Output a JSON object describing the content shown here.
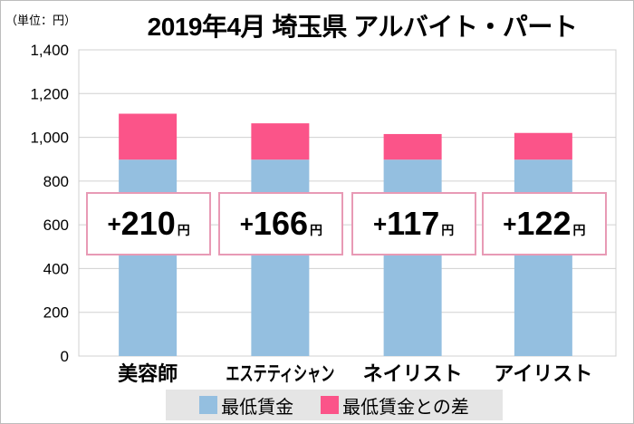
{
  "chart_data": {
    "type": "bar",
    "stacked": true,
    "title": "2019年4月 埼玉県 アルバイト・パート",
    "unit_label": "（単位：円）",
    "categories": [
      "美容師",
      "エステティシャン",
      "ネイリスト",
      "アイリスト"
    ],
    "series": [
      {
        "name": "最低賃金",
        "values": [
          898,
          898,
          898,
          898
        ],
        "color": "#94bfe0"
      },
      {
        "name": "最低賃金との差",
        "values": [
          210,
          166,
          117,
          122
        ],
        "color": "#fb5489"
      }
    ],
    "annotations": [
      {
        "sign": "+",
        "value": "210",
        "unit": "円"
      },
      {
        "sign": "+",
        "value": "166",
        "unit": "円"
      },
      {
        "sign": "+",
        "value": "117",
        "unit": "円"
      },
      {
        "sign": "+",
        "value": "122",
        "unit": "円"
      }
    ],
    "yticks": [
      "0",
      "200",
      "400",
      "600",
      "800",
      "1,000",
      "1,200",
      "1,400"
    ],
    "ylim": [
      0,
      1400
    ],
    "grid": true,
    "legend_position": "bottom"
  }
}
